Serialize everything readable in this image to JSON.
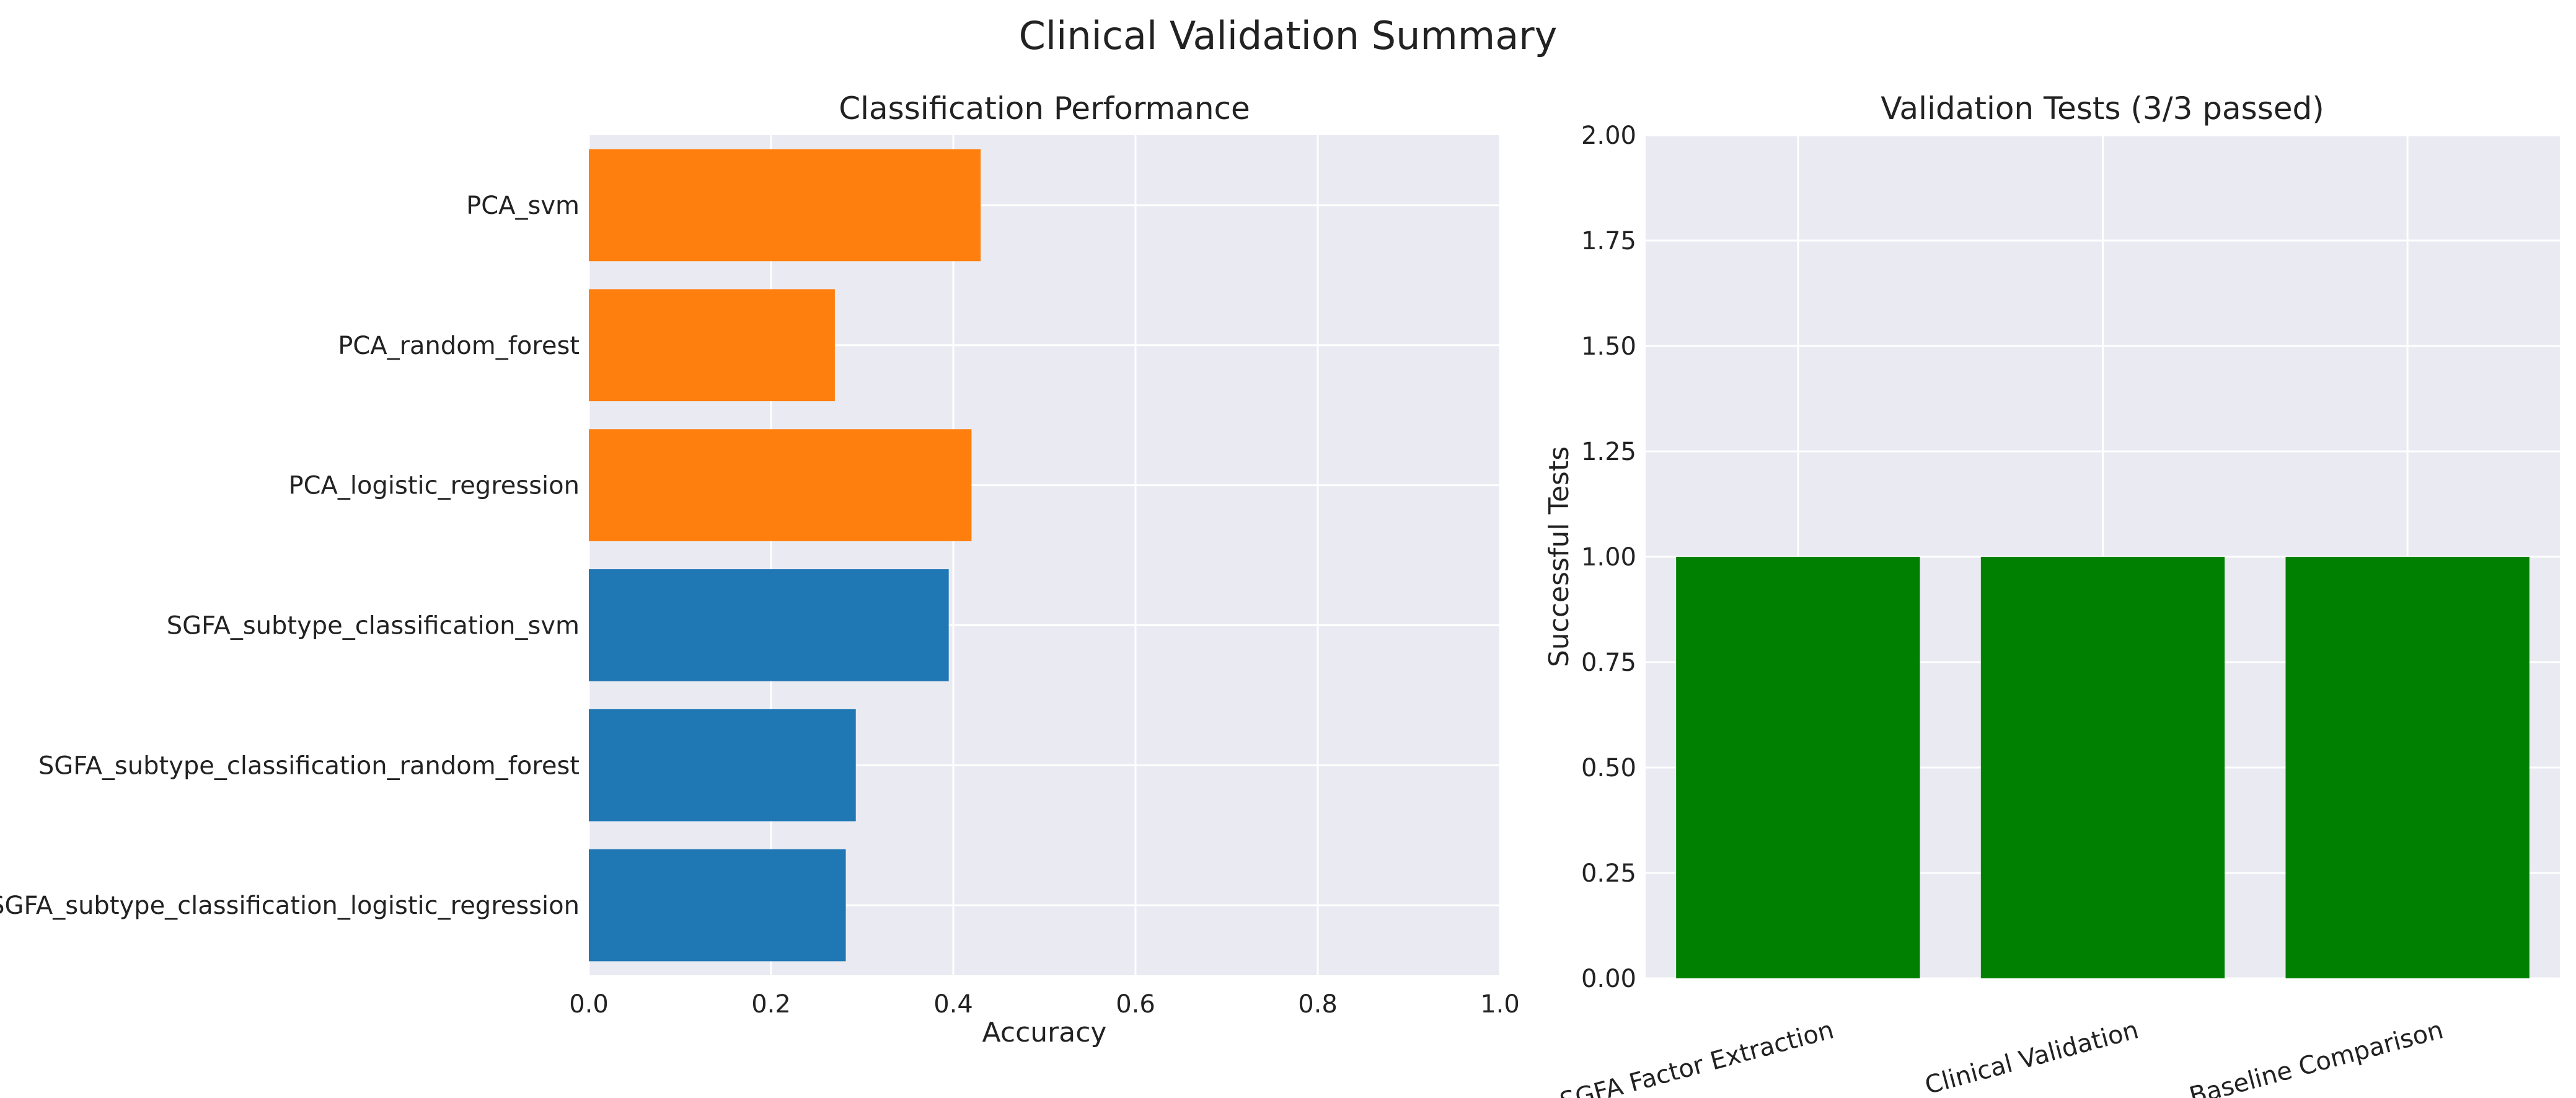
{
  "figure": {
    "title": "Clinical Validation Summary"
  },
  "chart_data": [
    {
      "type": "bar",
      "orientation": "horizontal",
      "title": "Classification Performance",
      "xlabel": "Accuracy",
      "ylabel": "",
      "xlim": [
        0,
        1.0
      ],
      "xticks": [
        "0.0",
        "0.2",
        "0.4",
        "0.6",
        "0.8",
        "1.0"
      ],
      "grid": true,
      "categories": [
        "PCA_svm",
        "PCA_random_forest",
        "PCA_logistic_regression",
        "SGFA_subtype_classification_svm",
        "SGFA_subtype_classification_random_forest",
        "SGFA_subtype_classification_logistic_regression"
      ],
      "values": [
        0.43,
        0.27,
        0.42,
        0.395,
        0.293,
        0.282
      ],
      "colors": [
        "#ff7f0e",
        "#ff7f0e",
        "#ff7f0e",
        "#1f77b4",
        "#1f77b4",
        "#1f77b4"
      ]
    },
    {
      "type": "bar",
      "orientation": "vertical",
      "title": "Validation Tests (3/3 passed)",
      "xlabel": "",
      "ylabel": "Successful Tests",
      "ylim": [
        0,
        2.0
      ],
      "yticks": [
        "0.00",
        "0.25",
        "0.50",
        "0.75",
        "1.00",
        "1.25",
        "1.50",
        "1.75",
        "2.00"
      ],
      "grid": true,
      "categories": [
        "SGFA Factor Extraction",
        "Clinical Validation",
        "Baseline Comparison"
      ],
      "values": [
        1,
        1,
        1
      ],
      "colors": [
        "#008000",
        "#008000",
        "#008000"
      ]
    }
  ]
}
